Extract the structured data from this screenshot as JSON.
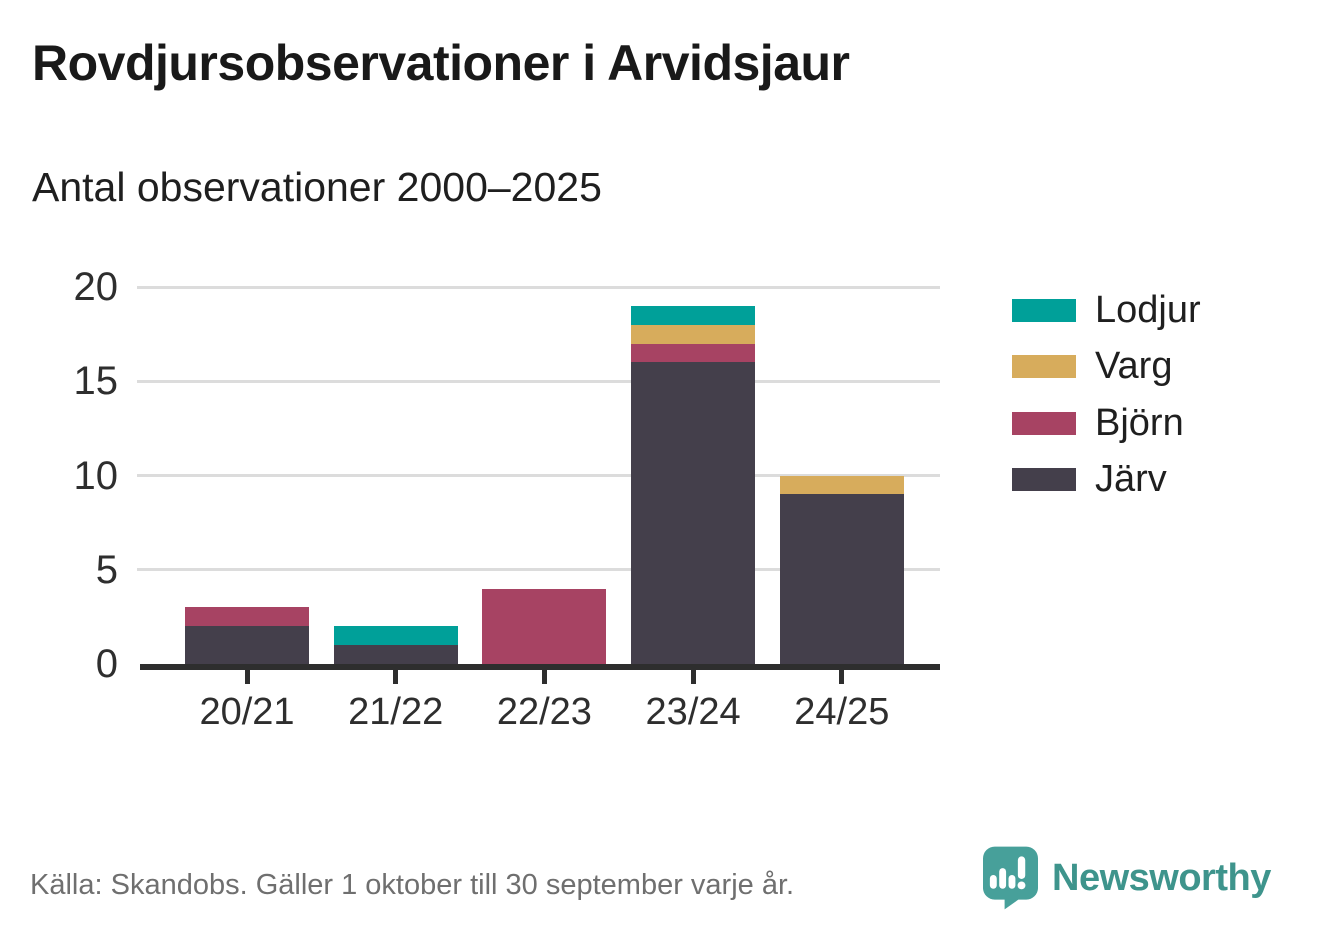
{
  "header": {
    "title": "Rovdjursobservationer i Arvidsjaur",
    "subtitle": "Antal observationer 2000–2025"
  },
  "footer": {
    "source": "Källa: Skandobs. Gäller 1 oktober till 30 september varje år.",
    "brand": {
      "name": "Newsworthy",
      "icon": "newsworthy-speech-bubble-bar-chart-icon",
      "wordmark_color": "#3E948C",
      "icon_color": "#47A09A"
    }
  },
  "chart_data": {
    "type": "bar",
    "stacked": true,
    "title": "Rovdjursobservationer i Arvidsjaur",
    "subtitle": "Antal observationer 2000–2025",
    "categories": [
      "20/21",
      "21/22",
      "22/23",
      "23/24",
      "24/25"
    ],
    "series": [
      {
        "name": "Lodjur",
        "color": "#00A099",
        "values": [
          0,
          1,
          0,
          1,
          0
        ]
      },
      {
        "name": "Varg",
        "color": "#D7AC5C",
        "values": [
          0,
          0,
          0,
          1,
          1
        ]
      },
      {
        "name": "Björn",
        "color": "#A74363",
        "values": [
          1,
          0,
          4,
          1,
          0
        ]
      },
      {
        "name": "Järv",
        "color": "#443F4B",
        "values": [
          2,
          1,
          0,
          16,
          9
        ]
      }
    ],
    "stack_order": "bottom-to-top: Järv, Björn, Varg, Lodjur",
    "xlabel": "",
    "ylabel": "",
    "ylim": [
      0,
      20
    ],
    "yticks": [
      0,
      5,
      10,
      15,
      20
    ],
    "grid": true,
    "legend_position": "right",
    "axis_color": "#2E2E2E",
    "gridline_color": "#DCDCDC"
  }
}
